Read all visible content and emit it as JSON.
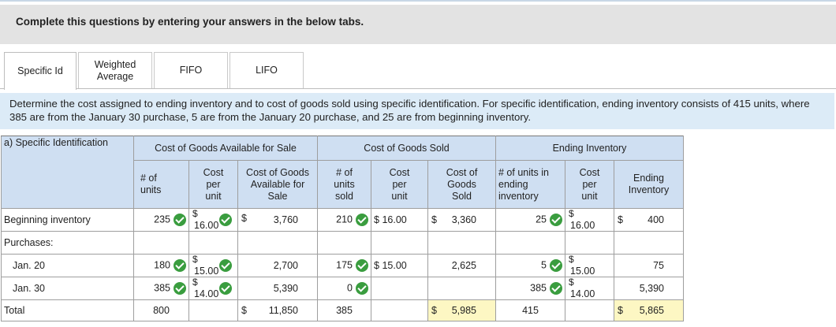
{
  "header": {
    "title": "Complete this questions by entering your answers in the below tabs."
  },
  "tabs": [
    {
      "label": "Specific Id",
      "active": true
    },
    {
      "label": "Weighted Average",
      "active": false
    },
    {
      "label": "FIFO",
      "active": false
    },
    {
      "label": "LIFO",
      "active": false
    }
  ],
  "instructions": "Determine the cost assigned to ending inventory and to cost of goods sold using specific identification. For specific identification, ending inventory consists of 415 units, where 385 are from the January 30 purchase, 5 are from the January 20 purchase, and 25 are from beginning inventory.",
  "table": {
    "corner_label": "a) Specific Identification",
    "groups": {
      "available": "Cost of Goods Available for Sale",
      "cogs": "Cost of Goods Sold",
      "ending": "Ending Inventory"
    },
    "subheaders": {
      "units": "# of units",
      "cost_per_unit": "Cost per unit",
      "cost_available": "Cost of Goods Available for Sale",
      "units_sold": "# of units sold",
      "cogs_cost_per_unit": "Cost per unit",
      "cost_of_goods_sold": "Cost of Goods Sold",
      "units_ending": "# of units in ending inventory",
      "ending_cost_per_unit": "Cost per unit",
      "ending_inventory": "Ending Inventory"
    },
    "currency": "$",
    "rows": {
      "beginning": {
        "label": "Beginning inventory",
        "units": "235",
        "cost_per_unit": "16.00",
        "cost_available": "3,760",
        "units_sold": "210",
        "cogs_cost_per_unit": "16.00",
        "cost_of_goods_sold": "3,360",
        "units_ending": "25",
        "ending_cost_per_unit": "16.00",
        "ending_inventory": "400"
      },
      "purchases": {
        "label": "Purchases:"
      },
      "jan20": {
        "label": "Jan. 20",
        "units": "180",
        "cost_per_unit": "15.00",
        "cost_available": "2,700",
        "units_sold": "175",
        "cogs_cost_per_unit": "15.00",
        "cost_of_goods_sold": "2,625",
        "units_ending": "5",
        "ending_cost_per_unit": "15.00",
        "ending_inventory": "75"
      },
      "jan30": {
        "label": "Jan. 30",
        "units": "385",
        "cost_per_unit": "14.00",
        "cost_available": "5,390",
        "units_sold": "0",
        "units_ending": "385",
        "ending_cost_per_unit": "14.00",
        "ending_inventory": "5,390"
      },
      "total": {
        "label": "Total",
        "units": "800",
        "cost_available": "11,850",
        "units_sold": "385",
        "cost_of_goods_sold": "5,985",
        "units_ending": "415",
        "ending_inventory": "5,865"
      }
    }
  },
  "icons": {
    "correct": "check-circle-icon"
  },
  "colors": {
    "check_green": "#3a9d3f",
    "header_blue": "#cfdff2",
    "instruction_blue": "#dcebf7",
    "highlight_yellow": "#fdf7c3"
  }
}
